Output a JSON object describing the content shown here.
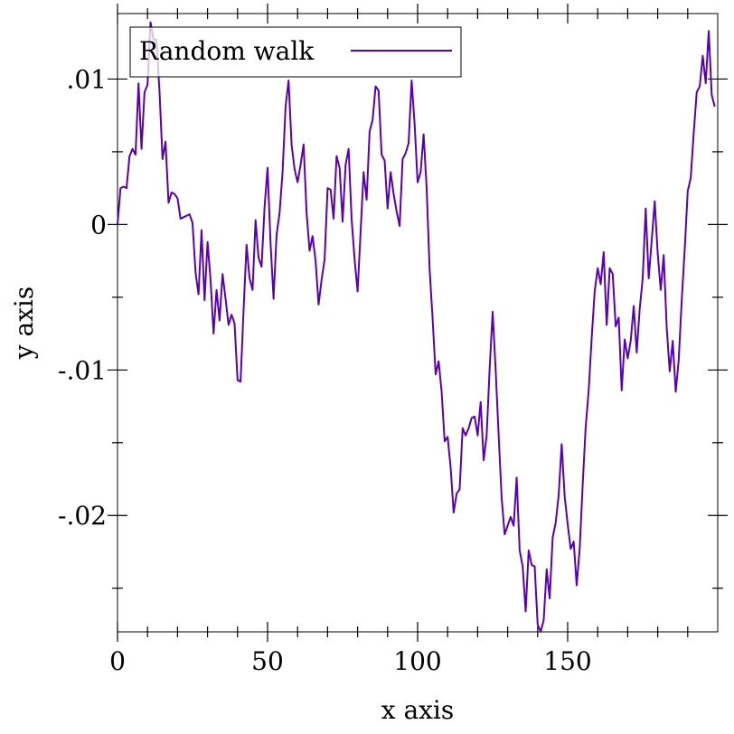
{
  "chart_data": {
    "type": "line",
    "xlabel": "x axis",
    "ylabel": "y axis",
    "xlim": [
      0,
      200
    ],
    "ylim": [
      -0.028,
      0.0145
    ],
    "grid": false,
    "legend_position": "top-left",
    "x_major_ticks": [
      0,
      50,
      100,
      150
    ],
    "x_minor_ticks": [
      10,
      20,
      30,
      40,
      60,
      70,
      80,
      90,
      110,
      120,
      130,
      140,
      160,
      170,
      180,
      190
    ],
    "x_tick_labels": [
      "0",
      "50",
      "100",
      "150"
    ],
    "y_major_ticks": [
      0.01,
      0,
      -0.01,
      -0.02
    ],
    "y_minor_ticks": [
      0.005,
      -0.005,
      -0.015,
      -0.025
    ],
    "y_tick_labels": [
      ".01",
      "0",
      "-.01",
      "-.02"
    ],
    "series": [
      {
        "name": "Random walk",
        "color": "#5a00b4",
        "x": [
          0,
          1,
          2,
          3,
          4,
          5,
          6,
          7,
          8,
          9,
          10,
          11,
          12,
          13,
          14,
          15,
          16,
          17,
          18,
          19,
          20,
          21,
          22,
          23,
          24,
          25,
          26,
          27,
          28,
          29,
          30,
          31,
          32,
          33,
          34,
          35,
          36,
          37,
          38,
          39,
          40,
          41,
          42,
          43,
          44,
          45,
          46,
          47,
          48,
          49,
          50,
          51,
          52,
          53,
          54,
          55,
          56,
          57,
          58,
          59,
          60,
          61,
          62,
          63,
          64,
          65,
          66,
          67,
          68,
          69,
          70,
          71,
          72,
          73,
          74,
          75,
          76,
          77,
          78,
          79,
          80,
          81,
          82,
          83,
          84,
          85,
          86,
          87,
          88,
          89,
          90,
          91,
          92,
          93,
          94,
          95,
          96,
          97,
          98,
          99,
          100,
          101,
          102,
          103,
          104,
          105,
          106,
          107,
          108,
          109,
          110,
          111,
          112,
          113,
          114,
          115,
          116,
          117,
          118,
          119,
          120,
          121,
          122,
          123,
          124,
          125,
          126,
          127,
          128,
          129,
          130,
          131,
          132,
          133,
          134,
          135,
          136,
          137,
          138,
          139,
          140,
          141,
          142,
          143,
          144,
          145,
          146,
          147,
          148,
          149,
          150,
          151,
          152,
          153,
          154,
          155,
          156,
          157,
          158,
          159,
          160,
          161,
          162,
          163,
          164,
          165,
          166,
          167,
          168,
          169,
          170,
          171,
          172,
          173,
          174,
          175,
          176,
          177,
          178,
          179,
          180,
          181,
          182,
          183,
          184,
          185,
          186,
          187,
          188,
          189,
          190,
          191,
          192,
          193,
          194,
          195,
          196,
          197,
          198,
          199
        ],
        "values": [
          0,
          0.0025,
          0.0026,
          0.0025,
          0.0047,
          0.0052,
          0.0048,
          0.0097,
          0.0052,
          0.0091,
          0.0096,
          0.0139,
          0.0127,
          0.0127,
          0.0091,
          0.0045,
          0.0057,
          0.0015,
          0.0022,
          0.0021,
          0.0018,
          0.0004,
          0.0005,
          0.0006,
          0.0007,
          0.0001,
          -0.0033,
          -0.0048,
          -0.0004,
          -0.0052,
          -0.0012,
          -0.0038,
          -0.0075,
          -0.0045,
          -0.0066,
          -0.0034,
          -0.0051,
          -0.0069,
          -0.0062,
          -0.0068,
          -0.0107,
          -0.0108,
          -0.0059,
          -0.0014,
          -0.0037,
          -0.0045,
          0.0003,
          -0.0023,
          -0.0029,
          0.0012,
          0.0039,
          -0.0013,
          -0.0051,
          -0.0007,
          0.0008,
          0.0036,
          0.0081,
          0.0099,
          0.0055,
          0.0038,
          0.0029,
          0.0041,
          0.0055,
          0.0008,
          -0.0018,
          -0.0008,
          -0.0025,
          -0.0055,
          -0.0038,
          -0.0024,
          0.0025,
          0.0024,
          0.0004,
          0.0047,
          0.0039,
          0.0002,
          0.0041,
          0.0052,
          0.0004,
          -0.0024,
          -0.0046,
          -0.0005,
          0.0036,
          0.0017,
          0.0064,
          0.0072,
          0.0095,
          0.0092,
          0.0048,
          0.0044,
          0.0011,
          0.0036,
          0.0021,
          0.0009,
          -0.0001,
          0.0045,
          0.0049,
          0.0056,
          0.0099,
          0.0069,
          0.0029,
          0.0036,
          0.0062,
          0.0025,
          -0.0031,
          -0.0065,
          -0.0103,
          -0.0094,
          -0.0115,
          -0.0149,
          -0.0146,
          -0.0167,
          -0.0198,
          -0.0185,
          -0.0182,
          -0.014,
          -0.0145,
          -0.014,
          -0.0133,
          -0.0132,
          -0.0145,
          -0.0122,
          -0.0162,
          -0.0145,
          -0.0099,
          -0.006,
          -0.01,
          -0.0145,
          -0.0188,
          -0.0213,
          -0.0207,
          -0.0201,
          -0.0207,
          -0.0174,
          -0.0224,
          -0.0235,
          -0.0266,
          -0.0224,
          -0.0234,
          -0.0235,
          -0.0275,
          -0.028,
          -0.0272,
          -0.0237,
          -0.0257,
          -0.0215,
          -0.0205,
          -0.0186,
          -0.0151,
          -0.0187,
          -0.0206,
          -0.0223,
          -0.0218,
          -0.0248,
          -0.0223,
          -0.0179,
          -0.0139,
          -0.0114,
          -0.0078,
          -0.0046,
          -0.003,
          -0.0041,
          -0.0019,
          -0.0069,
          -0.003,
          -0.0034,
          -0.007,
          -0.0064,
          -0.0114,
          -0.0079,
          -0.0092,
          -0.008,
          -0.0056,
          -0.0088,
          -0.0058,
          -0.0037,
          0.0011,
          -0.0037,
          -0.0011,
          0.0016,
          -0.002,
          -0.0045,
          -0.0021,
          -0.0071,
          -0.0101,
          -0.008,
          -0.0115,
          -0.0093,
          -0.0052,
          -0.0017,
          0.0023,
          0.0032,
          0.0063,
          0.0091,
          0.0095,
          0.0116,
          0.0097,
          0.0133,
          0.0089,
          0.0081
        ]
      }
    ]
  }
}
